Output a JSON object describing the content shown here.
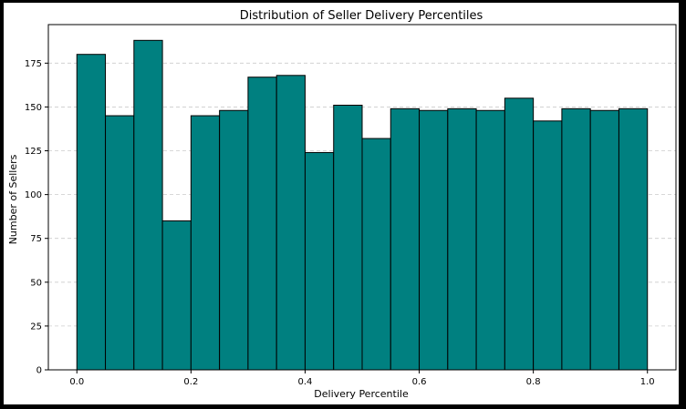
{
  "chart_data": {
    "type": "bar",
    "title": "Distribution of Seller Delivery Percentiles",
    "xlabel": "Delivery Percentile",
    "ylabel": "Number of Sellers",
    "bin_edges": [
      0.0,
      0.05,
      0.1,
      0.15,
      0.2,
      0.25,
      0.3,
      0.35,
      0.4,
      0.45,
      0.5,
      0.55,
      0.6,
      0.65,
      0.7,
      0.75,
      0.8,
      0.85,
      0.9,
      0.95,
      1.0
    ],
    "values": [
      180,
      145,
      188,
      85,
      145,
      148,
      167,
      168,
      124,
      151,
      132,
      149,
      148,
      149,
      148,
      155,
      142,
      149,
      148,
      149
    ],
    "xlim": [
      -0.05,
      1.05
    ],
    "ylim": [
      0,
      197
    ],
    "xticks": [
      "0.0",
      "0.2",
      "0.4",
      "0.6",
      "0.8",
      "1.0"
    ],
    "yticks": [
      "0",
      "25",
      "50",
      "75",
      "100",
      "125",
      "150",
      "175"
    ],
    "grid": "y-dashed",
    "bar_color": "#008080",
    "edge_color": "#000000"
  }
}
